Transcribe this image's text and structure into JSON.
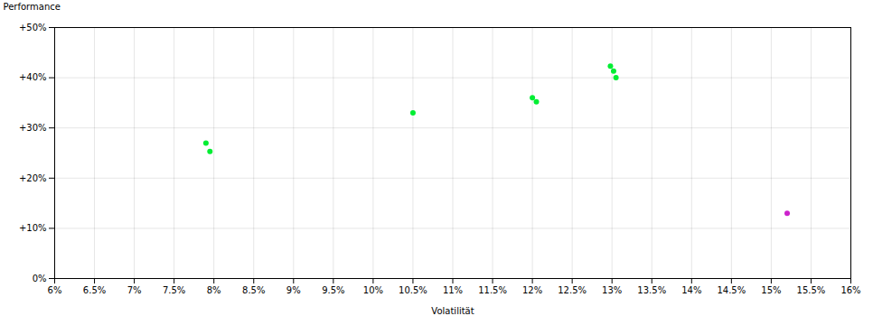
{
  "chart_data": {
    "type": "scatter",
    "xlabel": "Volatilität",
    "ylabel": "Performance",
    "xlim": [
      0.06,
      0.16
    ],
    "ylim": [
      0.0,
      0.5
    ],
    "xticks": [
      {
        "value": 0.06,
        "label": "6%"
      },
      {
        "value": 0.065,
        "label": "6.5%"
      },
      {
        "value": 0.07,
        "label": "7%"
      },
      {
        "value": 0.075,
        "label": "7.5%"
      },
      {
        "value": 0.08,
        "label": "8%"
      },
      {
        "value": 0.085,
        "label": "8.5%"
      },
      {
        "value": 0.09,
        "label": "9%"
      },
      {
        "value": 0.095,
        "label": "9.5%"
      },
      {
        "value": 0.1,
        "label": "10%"
      },
      {
        "value": 0.105,
        "label": "10.5%"
      },
      {
        "value": 0.11,
        "label": "11%"
      },
      {
        "value": 0.115,
        "label": "11.5%"
      },
      {
        "value": 0.12,
        "label": "12%"
      },
      {
        "value": 0.125,
        "label": "12.5%"
      },
      {
        "value": 0.13,
        "label": "13%"
      },
      {
        "value": 0.135,
        "label": "13.5%"
      },
      {
        "value": 0.14,
        "label": "14%"
      },
      {
        "value": 0.145,
        "label": "14.5%"
      },
      {
        "value": 0.15,
        "label": "15%"
      },
      {
        "value": 0.155,
        "label": "15.5%"
      },
      {
        "value": 0.16,
        "label": "16%"
      }
    ],
    "yticks": [
      {
        "value": 0.0,
        "label": "0%"
      },
      {
        "value": 0.1,
        "label": "+10%"
      },
      {
        "value": 0.2,
        "label": "+20%"
      },
      {
        "value": 0.3,
        "label": "+30%"
      },
      {
        "value": 0.4,
        "label": "+40%"
      },
      {
        "value": 0.5,
        "label": "+50%"
      }
    ],
    "grid": true,
    "series": [
      {
        "color": "#00ee33",
        "marker": "circle",
        "x": [
          0.079,
          0.0795,
          0.105,
          0.12,
          0.1205,
          0.1298,
          0.1302,
          0.1305
        ],
        "values": [
          0.27,
          0.253,
          0.33,
          0.36,
          0.352,
          0.423,
          0.413,
          0.4
        ]
      },
      {
        "color": "#cc22cc",
        "marker": "circle",
        "x": [
          0.152
        ],
        "values": [
          0.13
        ]
      }
    ]
  }
}
